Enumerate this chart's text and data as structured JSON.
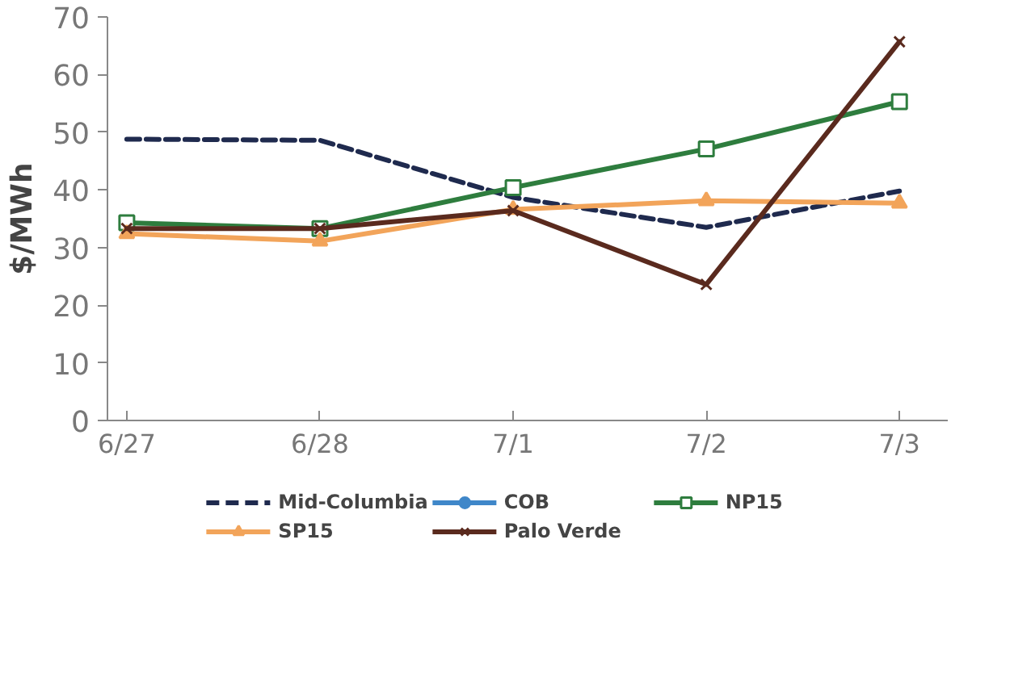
{
  "chart_data": {
    "type": "line",
    "ylabel": "$/MWh",
    "categories": [
      "6/27",
      "6/28",
      "7/1",
      "7/2",
      "7/3"
    ],
    "ylim": [
      0,
      70
    ],
    "yticks": [
      0,
      10,
      20,
      30,
      40,
      50,
      60,
      70
    ],
    "grid": false,
    "legend": "bottom",
    "series": [
      {
        "name": "Mid-Columbia",
        "color": "#1f2a4e",
        "line_style": "dashed",
        "marker": "none",
        "values": [
          48.8,
          48.6,
          38.7,
          33.5,
          39.8
        ]
      },
      {
        "name": "COB",
        "color": "#3f87c9",
        "line_style": "solid",
        "marker": "circle",
        "values": [
          null,
          null,
          null,
          null,
          null
        ]
      },
      {
        "name": "NP15",
        "color": "#2e7d3e",
        "line_style": "solid",
        "marker": "square",
        "values": [
          34.3,
          33.3,
          40.4,
          47.1,
          55.3
        ]
      },
      {
        "name": "SP15",
        "color": "#f2a45a",
        "line_style": "solid",
        "marker": "triangle",
        "values": [
          32.4,
          31.1,
          36.6,
          38.1,
          37.7
        ]
      },
      {
        "name": "Palo Verde",
        "color": "#5a2a1e",
        "line_style": "solid",
        "marker": "cross",
        "values": [
          33.3,
          33.3,
          36.4,
          23.6,
          65.7
        ]
      }
    ]
  }
}
